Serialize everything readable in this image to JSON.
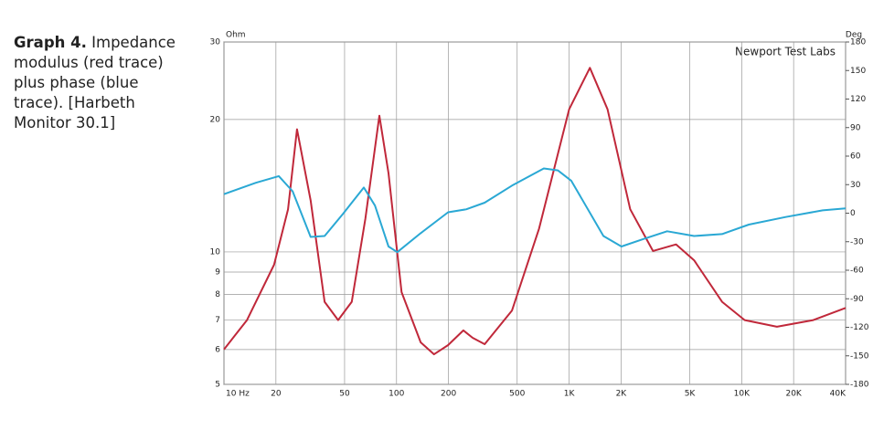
{
  "chart_data": {
    "type": "line",
    "caption_title": "Graph 4.",
    "caption": "Impedance modulus (red trace) plus phase (blue trace). [Harbeth Monitor 30.1]",
    "annotation": "Newport Test Labs",
    "ylabel": "Ohm",
    "y2label": "Deg",
    "xscale": "log",
    "yscale": "log",
    "grid": true,
    "xlim": [
      10,
      40000
    ],
    "xticks": [
      {
        "value": 10,
        "label": "10 Hz"
      },
      20,
      50,
      100,
      200,
      500,
      {
        "value": 1000,
        "label": "1K"
      },
      {
        "value": 2000,
        "label": "2K"
      },
      {
        "value": 5000,
        "label": "5K"
      },
      {
        "value": 10000,
        "label": "10K"
      },
      {
        "value": 20000,
        "label": "20K"
      },
      {
        "value": 40000,
        "label": "40K"
      }
    ],
    "ylim": [
      5,
      30
    ],
    "yticks": [
      5,
      6,
      7,
      8,
      9,
      10,
      20,
      30
    ],
    "y2lim": [
      -180,
      180
    ],
    "y2ticks": [
      -180,
      -150,
      -120,
      -90,
      -60,
      -30,
      0,
      30,
      60,
      90,
      120,
      150,
      180
    ],
    "series": [
      {
        "color": "#c0283a",
        "x": [
          10,
          13.6,
          19.5,
          23.5,
          26.5,
          31.8,
          38.3,
          45.9,
          55,
          66,
          79.5,
          89.8,
          107,
          138,
          165,
          199,
          244,
          276,
          324,
          467,
          670,
          1000,
          1320,
          1670,
          2260,
          3060,
          4170,
          5300,
          7700,
          10400,
          16000,
          26000,
          40000
        ],
        "values": [
          6.0,
          7.0,
          9.35,
          12.5,
          19.0,
          13.1,
          7.7,
          7.0,
          7.7,
          11.9,
          20.4,
          15.1,
          8.1,
          6.23,
          5.85,
          6.14,
          6.63,
          6.38,
          6.17,
          7.36,
          11.3,
          21.1,
          26.2,
          21.1,
          12.5,
          10.05,
          10.4,
          9.57,
          7.7,
          7.0,
          6.76,
          7.0,
          7.46
        ]
      },
      {
        "color": "#2aa8d4",
        "axis": "y2",
        "x": [
          10,
          15.3,
          20.8,
          25,
          31.8,
          38.3,
          48.8,
          64.6,
          75,
          89.8,
          101,
          138,
          199,
          253,
          324,
          467,
          714,
          860,
          1030,
          1580,
          2010,
          2720,
          3700,
          5300,
          7700,
          11000,
          18000,
          29500,
          40000
        ],
        "values": [
          20,
          32,
          39,
          23,
          -25,
          -24,
          -1,
          27,
          8,
          -35,
          -41,
          -21,
          1,
          4,
          11,
          29,
          47,
          45,
          34,
          -24,
          -35,
          -27,
          -19,
          -24,
          -22,
          -12,
          -4,
          3,
          5
        ]
      }
    ]
  }
}
